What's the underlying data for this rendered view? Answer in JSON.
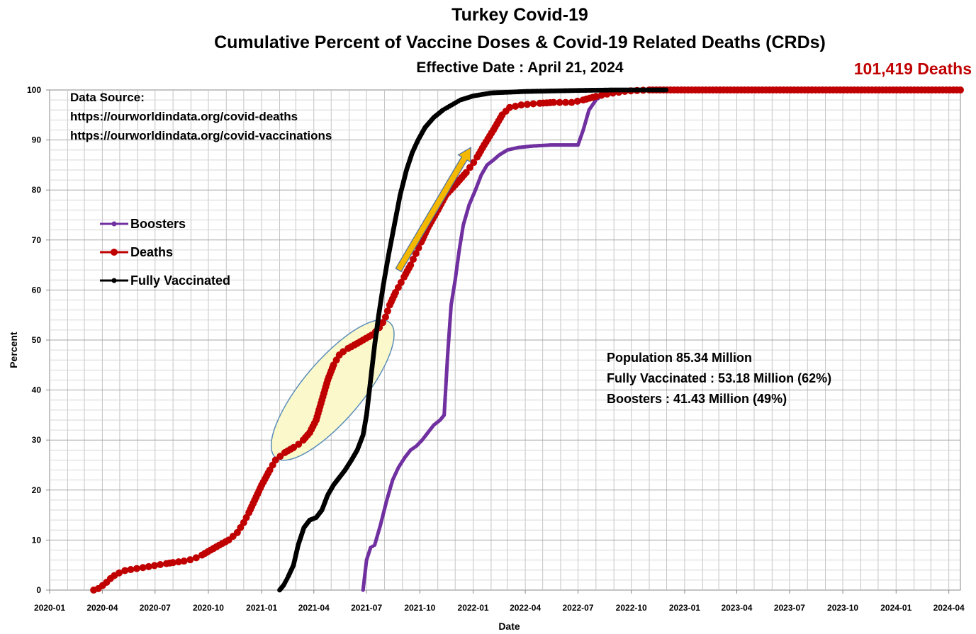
{
  "header": {
    "title": "Turkey Covid-19",
    "subtitle": "Cumulative Percent of Vaccine Doses & Covid-19 Related Deaths (CRDs)",
    "effective_date": "Effective Date : April 21, 2024",
    "deaths_total": "101,419 Deaths"
  },
  "source": {
    "label": "Data Source:",
    "url1": "https://ourworldindata.org/covid-deaths",
    "url2": "https://ourworldindata.org/covid-vaccinations"
  },
  "info": {
    "population": "Population  85.34 Million",
    "fully_vaccinated": "Fully Vaccinated : 53.18 Million (62%)",
    "boosters": "Boosters : 41.43 Million (49%)"
  },
  "colors": {
    "boosters": "#7030a0",
    "deaths": "#c00000",
    "fully_vaccinated": "#000000",
    "arrow": "#f5b800",
    "ellipse_fill": "#fbf9cc",
    "ellipse_stroke": "#5b8db8"
  },
  "chart_data": {
    "type": "line",
    "title": "Turkey Covid-19",
    "subtitle": "Cumulative Percent of Vaccine Doses & Covid-19 Related Deaths (CRDs)",
    "xlabel": "Date",
    "ylabel": "Percent",
    "ylim": [
      0,
      100
    ],
    "yticks": [
      0,
      10,
      20,
      30,
      40,
      50,
      60,
      70,
      80,
      90,
      100
    ],
    "xlim": [
      "2020-01-01",
      "2024-04-21"
    ],
    "xticks": [
      "2020-01",
      "2020-04",
      "2020-07",
      "2020-10",
      "2021-01",
      "2021-04",
      "2021-07",
      "2021-10",
      "2022-01",
      "2022-04",
      "2022-07",
      "2022-10",
      "2023-01",
      "2023-04",
      "2023-07",
      "2023-10",
      "2024-01",
      "2024-04"
    ],
    "grid": true,
    "legend": "left",
    "series": [
      {
        "name": "Boosters",
        "points": [
          [
            "2021-06-25",
            0
          ],
          [
            "2021-07-01",
            6
          ],
          [
            "2021-07-08",
            8.5
          ],
          [
            "2021-07-15",
            9
          ],
          [
            "2021-07-25",
            13
          ],
          [
            "2021-08-05",
            18
          ],
          [
            "2021-08-15",
            22
          ],
          [
            "2021-08-25",
            24.5
          ],
          [
            "2021-09-05",
            26.5
          ],
          [
            "2021-09-15",
            28
          ],
          [
            "2021-09-25",
            28.8
          ],
          [
            "2021-10-05",
            30
          ],
          [
            "2021-10-15",
            31.5
          ],
          [
            "2021-10-25",
            33
          ],
          [
            "2021-11-05",
            34
          ],
          [
            "2021-11-12",
            35
          ],
          [
            "2021-11-18",
            47
          ],
          [
            "2021-11-24",
            57
          ],
          [
            "2021-12-01",
            62
          ],
          [
            "2021-12-08",
            68
          ],
          [
            "2021-12-15",
            73
          ],
          [
            "2021-12-25",
            77
          ],
          [
            "2022-01-05",
            80
          ],
          [
            "2022-01-15",
            83
          ],
          [
            "2022-01-25",
            85
          ],
          [
            "2022-02-05",
            86
          ],
          [
            "2022-02-15",
            87
          ],
          [
            "2022-03-01",
            88
          ],
          [
            "2022-03-20",
            88.5
          ],
          [
            "2022-04-15",
            88.8
          ],
          [
            "2022-05-15",
            89
          ],
          [
            "2022-06-15",
            89
          ],
          [
            "2022-07-01",
            89
          ],
          [
            "2022-07-10",
            92
          ],
          [
            "2022-07-20",
            96
          ],
          [
            "2022-08-01",
            98
          ],
          [
            "2022-08-15",
            99.2
          ],
          [
            "2022-09-01",
            99.7
          ],
          [
            "2022-10-01",
            100
          ],
          [
            "2022-11-30",
            100
          ]
        ]
      },
      {
        "name": "Deaths",
        "points": [
          [
            "2020-03-17",
            0
          ],
          [
            "2020-03-25",
            0.3
          ],
          [
            "2020-04-05",
            1.2
          ],
          [
            "2020-04-15",
            2.3
          ],
          [
            "2020-04-25",
            3.2
          ],
          [
            "2020-05-10",
            3.9
          ],
          [
            "2020-05-25",
            4.2
          ],
          [
            "2020-06-10",
            4.5
          ],
          [
            "2020-06-25",
            4.8
          ],
          [
            "2020-07-15",
            5.2
          ],
          [
            "2020-08-01",
            5.5
          ],
          [
            "2020-08-20",
            5.8
          ],
          [
            "2020-09-05",
            6.2
          ],
          [
            "2020-09-20",
            7
          ],
          [
            "2020-10-05",
            8
          ],
          [
            "2020-10-20",
            9
          ],
          [
            "2020-11-05",
            10
          ],
          [
            "2020-11-20",
            11.5
          ],
          [
            "2020-12-01",
            13.5
          ],
          [
            "2020-12-10",
            15.5
          ],
          [
            "2020-12-20",
            18
          ],
          [
            "2021-01-01",
            21
          ],
          [
            "2021-01-15",
            24
          ],
          [
            "2021-01-25",
            26
          ],
          [
            "2021-02-10",
            27.5
          ],
          [
            "2021-02-25",
            28.5
          ],
          [
            "2021-03-10",
            29.5
          ],
          [
            "2021-03-25",
            31.5
          ],
          [
            "2021-04-05",
            34
          ],
          [
            "2021-04-15",
            38
          ],
          [
            "2021-04-25",
            42
          ],
          [
            "2021-05-05",
            45
          ],
          [
            "2021-05-15",
            47
          ],
          [
            "2021-05-25",
            48
          ],
          [
            "2021-06-10",
            49
          ],
          [
            "2021-06-25",
            50
          ],
          [
            "2021-07-10",
            51
          ],
          [
            "2021-07-20",
            52
          ],
          [
            "2021-08-01",
            54
          ],
          [
            "2021-08-10",
            57
          ],
          [
            "2021-08-20",
            59.5
          ],
          [
            "2021-09-01",
            62
          ],
          [
            "2021-09-15",
            65
          ],
          [
            "2021-10-01",
            69
          ],
          [
            "2021-10-15",
            72.5
          ],
          [
            "2021-11-01",
            76
          ],
          [
            "2021-11-15",
            79
          ],
          [
            "2021-12-01",
            81
          ],
          [
            "2021-12-20",
            83.5
          ],
          [
            "2022-01-05",
            86
          ],
          [
            "2022-01-20",
            89
          ],
          [
            "2022-02-05",
            92
          ],
          [
            "2022-02-20",
            95
          ],
          [
            "2022-03-05",
            96.5
          ],
          [
            "2022-03-25",
            97
          ],
          [
            "2022-04-20",
            97.3
          ],
          [
            "2022-05-20",
            97.5
          ],
          [
            "2022-06-20",
            97.5
          ],
          [
            "2022-07-10",
            98
          ],
          [
            "2022-08-01",
            98.7
          ],
          [
            "2022-08-25",
            99.3
          ],
          [
            "2022-09-25",
            99.8
          ],
          [
            "2022-11-01",
            100
          ],
          [
            "2024-04-21",
            100
          ]
        ]
      },
      {
        "name": "Fully Vaccinated",
        "points": [
          [
            "2021-02-01",
            0
          ],
          [
            "2021-02-08",
            1
          ],
          [
            "2021-02-15",
            2.5
          ],
          [
            "2021-02-25",
            5
          ],
          [
            "2021-03-05",
            9
          ],
          [
            "2021-03-15",
            12.5
          ],
          [
            "2021-03-25",
            14
          ],
          [
            "2021-04-05",
            14.5
          ],
          [
            "2021-04-15",
            16
          ],
          [
            "2021-04-25",
            19
          ],
          [
            "2021-05-05",
            21
          ],
          [
            "2021-05-15",
            22.5
          ],
          [
            "2021-05-25",
            24
          ],
          [
            "2021-06-05",
            26
          ],
          [
            "2021-06-15",
            28
          ],
          [
            "2021-06-25",
            31
          ],
          [
            "2021-07-01",
            35
          ],
          [
            "2021-07-08",
            42
          ],
          [
            "2021-07-15",
            49
          ],
          [
            "2021-07-22",
            55
          ],
          [
            "2021-07-30",
            61
          ],
          [
            "2021-08-08",
            67
          ],
          [
            "2021-08-18",
            73
          ],
          [
            "2021-08-28",
            79
          ],
          [
            "2021-09-08",
            84
          ],
          [
            "2021-09-18",
            87.5
          ],
          [
            "2021-09-28",
            90
          ],
          [
            "2021-10-10",
            92.5
          ],
          [
            "2021-10-25",
            94.5
          ],
          [
            "2021-11-10",
            96
          ],
          [
            "2021-11-25",
            97
          ],
          [
            "2021-12-10",
            98
          ],
          [
            "2022-01-01",
            98.8
          ],
          [
            "2022-02-01",
            99.4
          ],
          [
            "2022-04-01",
            99.7
          ],
          [
            "2022-07-01",
            99.9
          ],
          [
            "2022-09-01",
            100
          ],
          [
            "2022-11-30",
            100
          ]
        ]
      }
    ]
  }
}
